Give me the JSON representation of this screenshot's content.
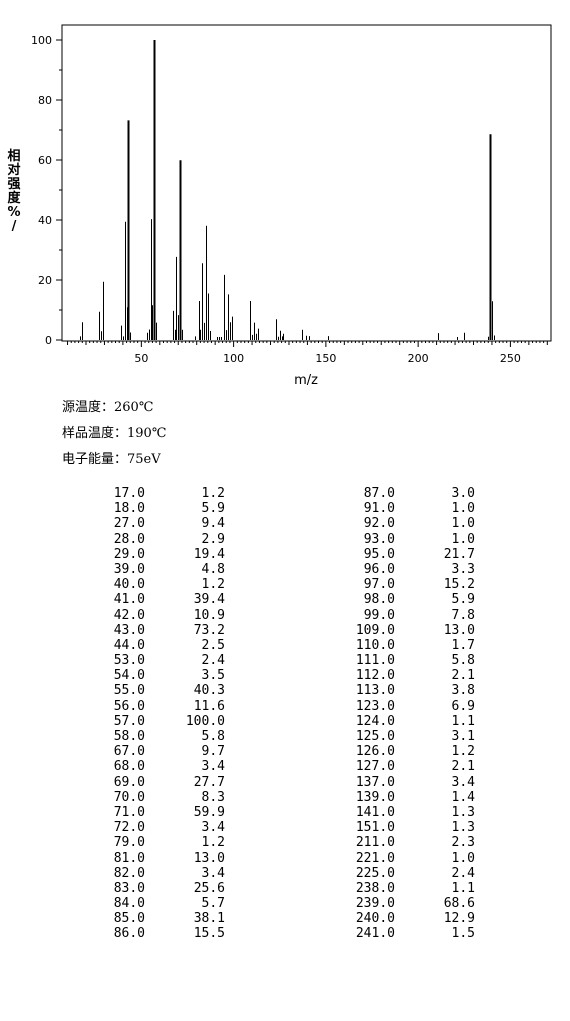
{
  "chart_data": {
    "type": "bar",
    "title": "",
    "xlabel": "m/z",
    "ylabel": "相对强度/%",
    "ylabel_chars": [
      "相",
      "对",
      "强",
      "度",
      "%",
      "/"
    ],
    "xlim": [
      7,
      272
    ],
    "ylim": [
      0,
      105
    ],
    "xticks": [
      50,
      100,
      150,
      200,
      250
    ],
    "yticks": [
      0,
      20,
      40,
      60,
      80,
      100
    ],
    "grid": false,
    "peaks": [
      {
        "mz": 17.0,
        "ab": 1.2
      },
      {
        "mz": 18.0,
        "ab": 5.9
      },
      {
        "mz": 27.0,
        "ab": 9.4
      },
      {
        "mz": 28.0,
        "ab": 2.9
      },
      {
        "mz": 29.0,
        "ab": 19.4
      },
      {
        "mz": 39.0,
        "ab": 4.8
      },
      {
        "mz": 40.0,
        "ab": 1.2
      },
      {
        "mz": 41.0,
        "ab": 39.4
      },
      {
        "mz": 42.0,
        "ab": 10.9
      },
      {
        "mz": 43.0,
        "ab": 73.2
      },
      {
        "mz": 44.0,
        "ab": 2.5
      },
      {
        "mz": 53.0,
        "ab": 2.4
      },
      {
        "mz": 54.0,
        "ab": 3.5
      },
      {
        "mz": 55.0,
        "ab": 40.3
      },
      {
        "mz": 56.0,
        "ab": 11.6
      },
      {
        "mz": 57.0,
        "ab": 100.0
      },
      {
        "mz": 58.0,
        "ab": 5.8
      },
      {
        "mz": 67.0,
        "ab": 9.7
      },
      {
        "mz": 68.0,
        "ab": 3.4
      },
      {
        "mz": 69.0,
        "ab": 27.7
      },
      {
        "mz": 70.0,
        "ab": 8.3
      },
      {
        "mz": 71.0,
        "ab": 59.9
      },
      {
        "mz": 72.0,
        "ab": 3.4
      },
      {
        "mz": 79.0,
        "ab": 1.2
      },
      {
        "mz": 81.0,
        "ab": 13.0
      },
      {
        "mz": 82.0,
        "ab": 3.4
      },
      {
        "mz": 83.0,
        "ab": 25.6
      },
      {
        "mz": 84.0,
        "ab": 5.7
      },
      {
        "mz": 85.0,
        "ab": 38.1
      },
      {
        "mz": 86.0,
        "ab": 15.5
      },
      {
        "mz": 87.0,
        "ab": 3.0
      },
      {
        "mz": 91.0,
        "ab": 1.0
      },
      {
        "mz": 92.0,
        "ab": 1.0
      },
      {
        "mz": 93.0,
        "ab": 1.0
      },
      {
        "mz": 95.0,
        "ab": 21.7
      },
      {
        "mz": 96.0,
        "ab": 3.3
      },
      {
        "mz": 97.0,
        "ab": 15.2
      },
      {
        "mz": 98.0,
        "ab": 5.9
      },
      {
        "mz": 99.0,
        "ab": 7.8
      },
      {
        "mz": 109.0,
        "ab": 13.0
      },
      {
        "mz": 110.0,
        "ab": 1.7
      },
      {
        "mz": 111.0,
        "ab": 5.8
      },
      {
        "mz": 112.0,
        "ab": 2.1
      },
      {
        "mz": 113.0,
        "ab": 3.8
      },
      {
        "mz": 123.0,
        "ab": 6.9
      },
      {
        "mz": 124.0,
        "ab": 1.1
      },
      {
        "mz": 125.0,
        "ab": 3.1
      },
      {
        "mz": 126.0,
        "ab": 1.2
      },
      {
        "mz": 127.0,
        "ab": 2.1
      },
      {
        "mz": 137.0,
        "ab": 3.4
      },
      {
        "mz": 139.0,
        "ab": 1.4
      },
      {
        "mz": 141.0,
        "ab": 1.3
      },
      {
        "mz": 151.0,
        "ab": 1.3
      },
      {
        "mz": 211.0,
        "ab": 2.3
      },
      {
        "mz": 221.0,
        "ab": 1.0
      },
      {
        "mz": 225.0,
        "ab": 2.4
      },
      {
        "mz": 238.0,
        "ab": 1.1
      },
      {
        "mz": 239.0,
        "ab": 68.6
      },
      {
        "mz": 240.0,
        "ab": 12.9
      },
      {
        "mz": 241.0,
        "ab": 1.5
      }
    ]
  },
  "params": {
    "source_temp": "源温度：260℃",
    "sample_temp": "样品温度：190℃",
    "electron_energy": "电子能量：75eV"
  },
  "peak_table": {
    "left": [
      [
        "17.0",
        "1.2"
      ],
      [
        "18.0",
        "5.9"
      ],
      [
        "27.0",
        "9.4"
      ],
      [
        "28.0",
        "2.9"
      ],
      [
        "29.0",
        "19.4"
      ],
      [
        "39.0",
        "4.8"
      ],
      [
        "40.0",
        "1.2"
      ],
      [
        "41.0",
        "39.4"
      ],
      [
        "42.0",
        "10.9"
      ],
      [
        "43.0",
        "73.2"
      ],
      [
        "44.0",
        "2.5"
      ],
      [
        "53.0",
        "2.4"
      ],
      [
        "54.0",
        "3.5"
      ],
      [
        "55.0",
        "40.3"
      ],
      [
        "56.0",
        "11.6"
      ],
      [
        "57.0",
        "100.0"
      ],
      [
        "58.0",
        "5.8"
      ],
      [
        "67.0",
        "9.7"
      ],
      [
        "68.0",
        "3.4"
      ],
      [
        "69.0",
        "27.7"
      ],
      [
        "70.0",
        "8.3"
      ],
      [
        "71.0",
        "59.9"
      ],
      [
        "72.0",
        "3.4"
      ],
      [
        "79.0",
        "1.2"
      ],
      [
        "81.0",
        "13.0"
      ],
      [
        "82.0",
        "3.4"
      ],
      [
        "83.0",
        "25.6"
      ],
      [
        "84.0",
        "5.7"
      ],
      [
        "85.0",
        "38.1"
      ],
      [
        "86.0",
        "15.5"
      ]
    ],
    "right": [
      [
        "87.0",
        "3.0"
      ],
      [
        "91.0",
        "1.0"
      ],
      [
        "92.0",
        "1.0"
      ],
      [
        "93.0",
        "1.0"
      ],
      [
        "95.0",
        "21.7"
      ],
      [
        "96.0",
        "3.3"
      ],
      [
        "97.0",
        "15.2"
      ],
      [
        "98.0",
        "5.9"
      ],
      [
        "99.0",
        "7.8"
      ],
      [
        "109.0",
        "13.0"
      ],
      [
        "110.0",
        "1.7"
      ],
      [
        "111.0",
        "5.8"
      ],
      [
        "112.0",
        "2.1"
      ],
      [
        "113.0",
        "3.8"
      ],
      [
        "123.0",
        "6.9"
      ],
      [
        "124.0",
        "1.1"
      ],
      [
        "125.0",
        "3.1"
      ],
      [
        "126.0",
        "1.2"
      ],
      [
        "127.0",
        "2.1"
      ],
      [
        "137.0",
        "3.4"
      ],
      [
        "139.0",
        "1.4"
      ],
      [
        "141.0",
        "1.3"
      ],
      [
        "151.0",
        "1.3"
      ],
      [
        "211.0",
        "2.3"
      ],
      [
        "221.0",
        "1.0"
      ],
      [
        "225.0",
        "2.4"
      ],
      [
        "238.0",
        "1.1"
      ],
      [
        "239.0",
        "68.6"
      ],
      [
        "240.0",
        "12.9"
      ],
      [
        "241.0",
        "1.5"
      ]
    ]
  }
}
